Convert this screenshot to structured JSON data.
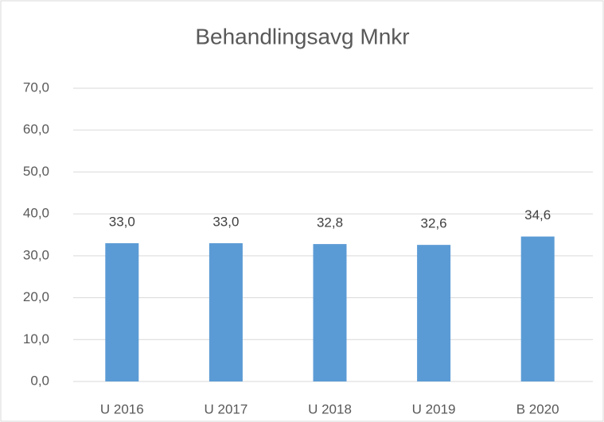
{
  "chart_data": {
    "type": "bar",
    "title": "Behandlingsavg Mnkr",
    "categories": [
      "U 2016",
      "U 2017",
      "U 2018",
      "U 2019",
      "B 2020"
    ],
    "values": [
      33.0,
      33.0,
      32.8,
      32.6,
      34.6
    ],
    "value_labels": [
      "33,0",
      "33,0",
      "32,8",
      "32,6",
      "34,6"
    ],
    "color": "#5b9bd5",
    "ylim": [
      0,
      70
    ],
    "yticks": [
      {
        "value": 0,
        "label": "0,0"
      },
      {
        "value": 10,
        "label": "10,0"
      },
      {
        "value": 20,
        "label": "20,0"
      },
      {
        "value": 30,
        "label": "30,0"
      },
      {
        "value": 40,
        "label": "40,0"
      },
      {
        "value": 50,
        "label": "50,0"
      },
      {
        "value": 60,
        "label": "60,0"
      },
      {
        "value": 70,
        "label": "70,0"
      }
    ],
    "grid": true
  }
}
